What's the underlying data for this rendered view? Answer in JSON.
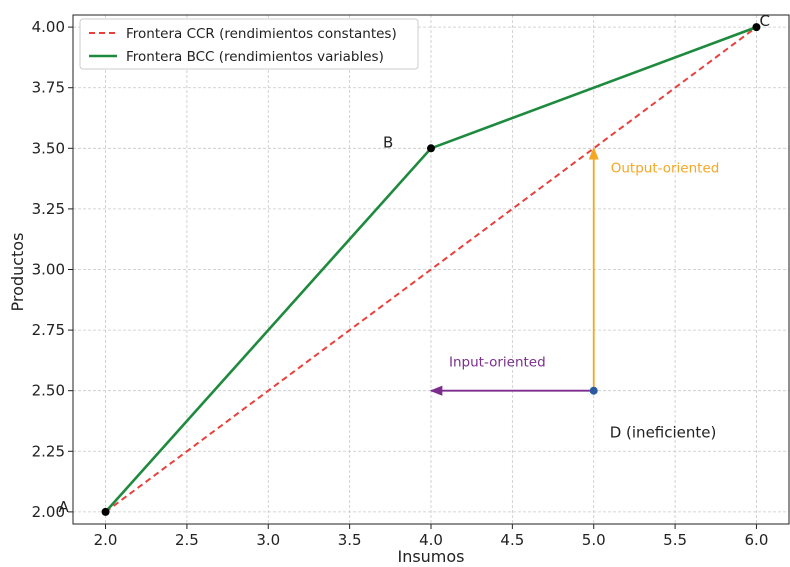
{
  "chart_data": {
    "type": "line",
    "xlabel": "Insumos",
    "ylabel": "Productos",
    "xlim": [
      1.8,
      6.2
    ],
    "ylim": [
      1.95,
      4.05
    ],
    "xticks": [
      "2.0",
      "2.5",
      "3.0",
      "3.5",
      "4.0",
      "4.5",
      "5.0",
      "5.5",
      "6.0"
    ],
    "yticks": [
      "2.00",
      "2.25",
      "2.50",
      "2.75",
      "3.00",
      "3.25",
      "3.50",
      "3.75",
      "4.00"
    ],
    "grid": true,
    "legend_position": "top-left",
    "series": [
      {
        "name": "Frontera CCR (rendimientos constantes)",
        "style": "dashed",
        "color": "#e8413c",
        "x": [
          2.0,
          6.0
        ],
        "y": [
          2.0,
          4.0
        ]
      },
      {
        "name": "Frontera BCC (rendimientos variables)",
        "style": "solid",
        "color": "#1e8a3e",
        "x": [
          2.0,
          4.0,
          6.0
        ],
        "y": [
          2.0,
          3.5,
          4.0
        ]
      }
    ],
    "points": [
      {
        "label": "A",
        "x": 2.0,
        "y": 2.0,
        "color": "#000000"
      },
      {
        "label": "B",
        "x": 4.0,
        "y": 3.5,
        "color": "#000000"
      },
      {
        "label": "C",
        "x": 6.0,
        "y": 4.0,
        "color": "#000000"
      },
      {
        "label": "D (ineficiente)",
        "x": 5.0,
        "y": 2.5,
        "color": "#2c5aa0"
      }
    ],
    "arrows": [
      {
        "label": "Output-oriented",
        "from": [
          5.0,
          2.5
        ],
        "to": [
          5.0,
          3.5
        ],
        "color": "#f5a623"
      },
      {
        "label": "Input-oriented",
        "from": [
          5.0,
          2.5
        ],
        "to": [
          4.0,
          2.5
        ],
        "color": "#7b2d8e"
      }
    ]
  }
}
